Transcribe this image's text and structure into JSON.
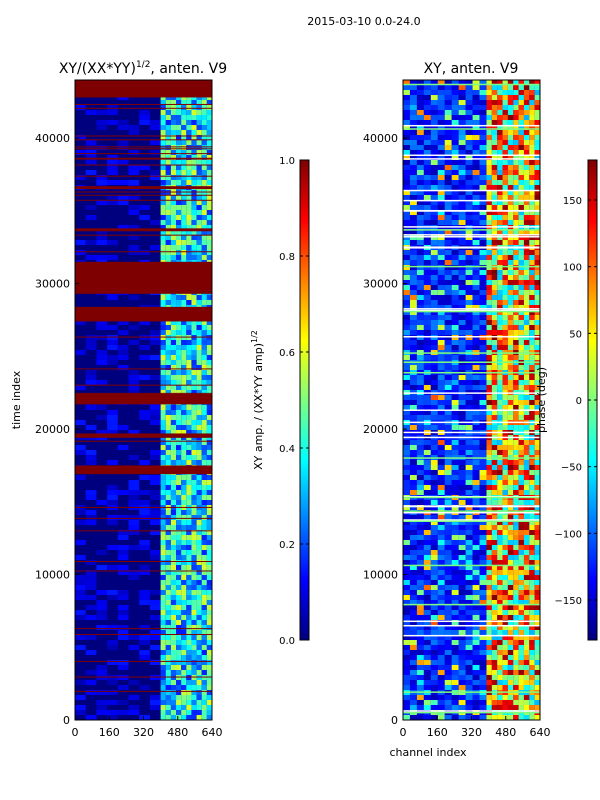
{
  "figure": {
    "suptitle": "2015-03-10 0.0-24.0"
  },
  "colors": {
    "jet": [
      "#00007f",
      "#0000ff",
      "#007fff",
      "#00ffff",
      "#7fff7f",
      "#ffff00",
      "#ff7f00",
      "#ff0000",
      "#7f0000"
    ],
    "background": "#ffffff",
    "axis": "#000000"
  },
  "chart_data": [
    {
      "type": "heatmap",
      "title_main": "XY/(XX*YY)",
      "title_sup": "1/2",
      "title_tail": ", anten. V9",
      "xlabel": "",
      "ylabel": "time index",
      "xlim": [
        0,
        640
      ],
      "ylim": [
        0,
        44000
      ],
      "xticks": [
        0,
        160,
        320,
        480,
        640
      ],
      "xtick_labels": [
        "0",
        "160",
        "320",
        "480",
        "640"
      ],
      "yticks": [
        0,
        10000,
        20000,
        30000,
        40000
      ],
      "ytick_labels": [
        "0",
        "10000",
        "20000",
        "30000",
        "40000"
      ],
      "colorbar": {
        "label": "XY amp. / (XX*YY amp)",
        "label_sup": "1/2",
        "range": [
          0.0,
          1.0
        ],
        "ticks": [
          0.0,
          0.2,
          0.4,
          0.6,
          0.8,
          1.0
        ],
        "tick_labels": [
          "0.0",
          "0.2",
          "0.4",
          "0.6",
          "0.8",
          "1.0"
        ]
      },
      "saturated_time_bands": [
        [
          42800,
          44000
        ],
        [
          29300,
          31500
        ],
        [
          27400,
          28400
        ],
        [
          21700,
          22400
        ],
        [
          16900,
          17500
        ],
        [
          19400,
          19700
        ],
        [
          36500,
          36700
        ],
        [
          33600,
          33800
        ]
      ],
      "strong_channel_range": [
        400,
        640
      ]
    },
    {
      "type": "heatmap",
      "title_main": "XY, anten. V9",
      "xlabel": "channel index",
      "ylabel": "",
      "xlim": [
        0,
        640
      ],
      "ylim": [
        0,
        44000
      ],
      "xticks": [
        0,
        160,
        320,
        480,
        640
      ],
      "xtick_labels": [
        "0",
        "160",
        "320",
        "480",
        "640"
      ],
      "yticks": [
        0,
        10000,
        20000,
        30000,
        40000
      ],
      "ytick_labels": [
        "0",
        "10000",
        "20000",
        "30000",
        "40000"
      ],
      "colorbar": {
        "label": "phase (deg)",
        "range": [
          -180,
          180
        ],
        "ticks": [
          -150,
          -100,
          -50,
          0,
          50,
          100,
          150
        ],
        "tick_labels": [
          "−150",
          "−100",
          "−50",
          "0",
          "50",
          "100",
          "150"
        ]
      },
      "strong_channel_range": [
        390,
        640
      ]
    }
  ]
}
